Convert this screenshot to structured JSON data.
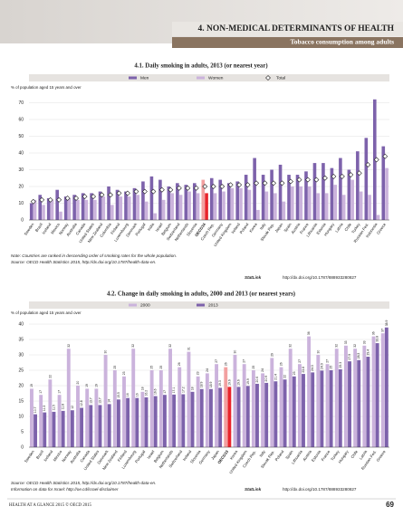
{
  "header": {
    "chapter": "4. NON-MEDICAL DETERMINANTS OF HEALTH",
    "section": "Tobacco consumption among adults"
  },
  "chart_data": [
    {
      "type": "bar",
      "title": "4.1. Daily smoking in adults, 2013 (or nearest year)",
      "y_label": "% of population aged 15 years and over",
      "categories": [
        "Sweden",
        "Brazil",
        "Iceland",
        "Mexico",
        "Norway",
        "Australia",
        "Canada",
        "United States",
        "New Zealand",
        "Colombia",
        "Finland",
        "Luxembourg",
        "Denmark",
        "Portugal",
        "India",
        "Israel",
        "Belgium",
        "Switzerland",
        "Netherlands",
        "Slovenia",
        "OECD34",
        "Czech Rep.",
        "Germany",
        "United Kingdom",
        "Ireland",
        "Poland",
        "Korea",
        "Italy",
        "Slovak Rep.",
        "Japan",
        "Spain",
        "Austria",
        "France",
        "Lithuania",
        "Estonia",
        "Hungary",
        "Latvia",
        "Chile",
        "Turkey",
        "Russian Fed.",
        "Indonesia",
        "Greece"
      ],
      "series": [
        {
          "name": "Men",
          "color": "#7d62ab",
          "values": [
            10,
            15,
            13,
            18,
            14,
            15,
            16,
            16,
            17,
            20,
            18,
            17,
            19,
            23,
            26,
            24,
            20,
            22,
            21,
            22,
            24,
            25,
            24,
            22,
            23,
            27,
            37,
            27,
            30,
            33,
            27,
            27,
            29,
            34,
            34,
            31,
            37,
            30,
            41,
            49,
            72,
            44
          ]
        },
        {
          "name": "Women",
          "color": "#cbb3dc",
          "values": [
            12,
            9,
            12,
            5,
            13,
            12,
            12,
            12,
            14,
            9,
            14,
            14,
            15,
            11,
            4,
            12,
            16,
            15,
            17,
            16,
            16,
            16,
            17,
            19,
            19,
            18,
            6,
            17,
            16,
            11,
            20,
            20,
            20,
            16,
            16,
            21,
            15,
            24,
            17,
            15,
            3,
            31
          ]
        },
        {
          "name": "Total",
          "color": "#ffffff",
          "style": "marker",
          "values": [
            11,
            12,
            12,
            12,
            13,
            13,
            14,
            14,
            15,
            15,
            16,
            16,
            17,
            17,
            17,
            18,
            18,
            19,
            19,
            19,
            20,
            20,
            20,
            21,
            21,
            21,
            22,
            22,
            22,
            22,
            23,
            24,
            24,
            24,
            25,
            26,
            26,
            27,
            28,
            33,
            36,
            38
          ]
        }
      ],
      "highlight": 20,
      "highlight_color": "#e8242b",
      "ylim": [
        0,
        80
      ],
      "yticks": [
        0,
        10,
        20,
        30,
        40,
        50,
        60,
        70
      ],
      "grid": true
    },
    {
      "type": "bar",
      "title": "4.2. Change in daily smoking in adults, 2000 and 2013 (or nearest years)",
      "y_label": "% of population aged 15 years and over",
      "categories": [
        "Sweden",
        "Brazil",
        "Iceland",
        "Mexico",
        "Norway",
        "Australia",
        "Canada",
        "United States",
        "Denmark",
        "New Zealand",
        "Finland",
        "Luxembourg",
        "Portugal",
        "Israel",
        "Belgium",
        "Netherlands",
        "Switzerland",
        "Ireland",
        "Slovenia",
        "Germany",
        "Japan",
        "OECD33",
        "Korea",
        "United Kingdom",
        "Czech Rep.",
        "Italy",
        "Slovak Rep.",
        "Poland",
        "Spain",
        "Lithuania",
        "Austria",
        "Estonia",
        "France",
        "Turkey",
        "Hungary",
        "Chile",
        "Latvia",
        "Russian Fed.",
        "Greece"
      ],
      "series": [
        {
          "name": "2000",
          "color": "#cbb3dc",
          "values": [
            19,
            17,
            22,
            17,
            32,
            20,
            19,
            19,
            30,
            25,
            23,
            32,
            18,
            25,
            25,
            32,
            26,
            31,
            23,
            24,
            27,
            26,
            30,
            27,
            25,
            24,
            29,
            26,
            32,
            27,
            36,
            30,
            27,
            32,
            33,
            32,
            33,
            36,
            37
          ]
        },
        {
          "name": "2013",
          "color": "#7d62ab",
          "values": [
            10.7,
            11.3,
            11.5,
            11.8,
            12,
            12.8,
            13.7,
            13.7,
            14,
            15.5,
            16,
            16,
            16.2,
            16.6,
            17,
            17.1,
            17.2,
            18,
            18.9,
            18.9,
            19.3,
            19.6,
            19.6,
            19.9,
            20.6,
            20.9,
            21.4,
            22,
            23,
            23.8,
            24.3,
            24.9,
            25,
            25.3,
            27.9,
            28.3,
            29.4,
            33.8,
            38.9
          ]
        }
      ],
      "highlight": 21,
      "highlight_color": "#e8242b",
      "ylim": [
        0,
        40
      ],
      "yticks": [
        0,
        5,
        10,
        15,
        20,
        25,
        30,
        35,
        40
      ],
      "grid": true
    }
  ],
  "notes": {
    "note1": "Note: Countries are ranked in descending order of smoking rates for the whole population.",
    "source1": "Source: OECD Health Statistics 2015, http://dx.doi.org/10.1787/health-data-en.",
    "statlink_label": "StatLink",
    "statlink1": "http://dx.doi.org/10.1787/888933280827",
    "source2": "Source: OECD Health Statistics 2015, http://dx.doi.org/10.1787/health-data-en.",
    "source2b": "Information on data for Israel: http://oe.cd/israel-disclaimer",
    "statlink2": "http://dx.doi.org/10.1787/888933280827"
  },
  "footer": {
    "left": "HEALTH AT A GLANCE 2015 © OECD 2015",
    "page": "69"
  }
}
